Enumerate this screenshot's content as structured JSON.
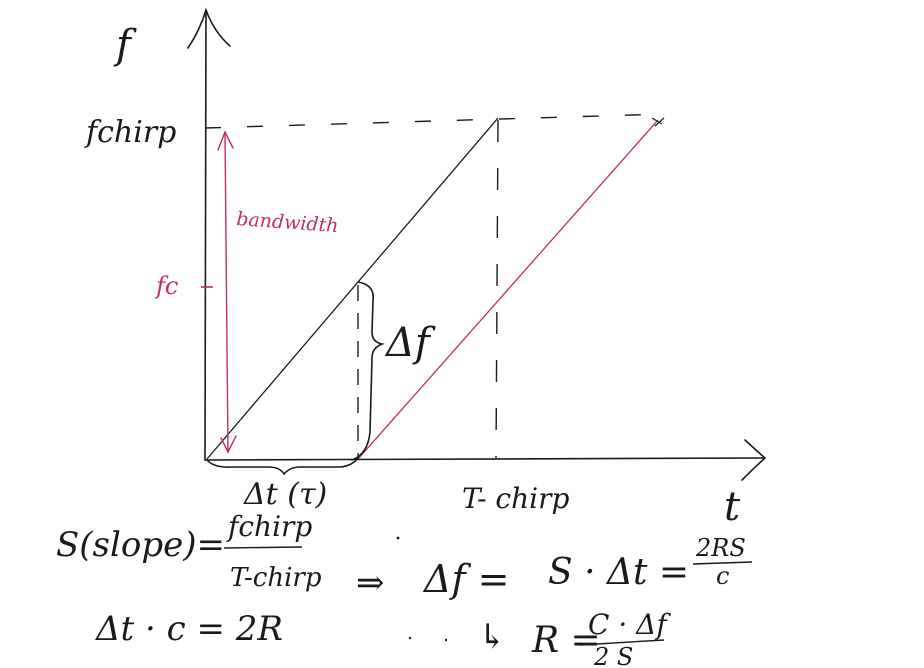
{
  "diagram": {
    "axis_labels": {
      "y": "f",
      "x": "t"
    },
    "tick_labels": {
      "f_chirp": "fchirp",
      "f_c": "fc",
      "t_chirp": "T- chirp",
      "delta_t_tau": "Δt (τ)"
    },
    "annotations": {
      "bandwidth": "bandwidth",
      "delta_f": "Δf"
    },
    "equations": {
      "slope_lhs": "S(slope)=",
      "slope_num": "fchirp",
      "slope_den": "T-chirp",
      "implies": "⇒",
      "delta_f_eq": "Δf =",
      "s_dt": "S · Δt =",
      "two_rs_num": "2RS",
      "two_rs_den": "c",
      "dt_c": "Δt · c = 2R",
      "arrow_r": "↳",
      "r_eq": "R =",
      "r_num": "C · Δf",
      "r_den": "2 S"
    },
    "colors": {
      "ink": "#1a1a1a",
      "accent": "#c0305a"
    }
  }
}
